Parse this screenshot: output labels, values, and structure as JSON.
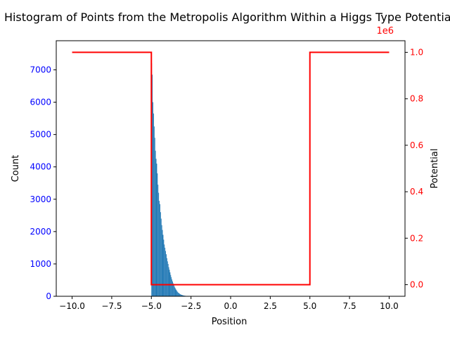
{
  "chart_data": {
    "type": "bar",
    "title": "Histogram of Points from the Metropolis Algorithm Within a Higgs Type Potential",
    "xlabel": "Position",
    "ylabel_left": "Count",
    "ylabel_right": "Potential",
    "right_axis_offset_label": "1e6",
    "xlim": [
      -11,
      11
    ],
    "ylim_left": [
      0,
      7900
    ],
    "ylim_right": [
      -0.05,
      1.05
    ],
    "grid": false,
    "colors": {
      "bars": "#1f77b4",
      "potential_line": "#ff0000",
      "left_tick_labels": "#0000ff",
      "right_tick_labels": "#ff0000",
      "axis": "#000000"
    },
    "x_ticks": [
      -10,
      -7.5,
      -5,
      -2.5,
      0,
      2.5,
      5,
      7.5,
      10
    ],
    "x_tick_labels": [
      "−10.0",
      "−7.5",
      "−5.0",
      "−2.5",
      "0.0",
      "2.5",
      "5.0",
      "7.5",
      "10.0"
    ],
    "left_ticks": [
      0,
      1000,
      2000,
      3000,
      4000,
      5000,
      6000,
      7000
    ],
    "left_tick_labels": [
      "0",
      "1000",
      "2000",
      "3000",
      "4000",
      "5000",
      "6000",
      "7000"
    ],
    "right_ticks": [
      0,
      0.2,
      0.4,
      0.6,
      0.8,
      1.0
    ],
    "right_tick_labels": [
      "0.0",
      "0.2",
      "0.4",
      "0.6",
      "0.8",
      "1.0"
    ],
    "histogram": {
      "bin_width": 0.04,
      "bin_starts": [
        -5.0,
        -4.96,
        -4.92,
        -4.88,
        -4.84,
        -4.8,
        -4.76,
        -4.72,
        -4.68,
        -4.64,
        -4.6,
        -4.56,
        -4.52,
        -4.48,
        -4.44,
        -4.4,
        -4.36,
        -4.32,
        -4.28,
        -4.24,
        -4.2,
        -4.16,
        -4.12,
        -4.08,
        -4.04,
        -4.0,
        -3.96,
        -3.92,
        -3.88,
        -3.84,
        -3.8,
        -3.76,
        -3.72,
        -3.68,
        -3.64,
        -3.6,
        -3.56,
        -3.52,
        -3.48,
        -3.44,
        -3.4,
        -3.36,
        -3.32,
        -3.28,
        -3.24,
        -3.2,
        -3.16,
        -3.12,
        -3.08,
        -3.04,
        -3.0,
        -2.96,
        -2.92,
        -2.88,
        -2.84,
        -2.8,
        -2.76,
        -2.72,
        -2.68,
        -2.64,
        -2.6,
        -2.56,
        -2.52
      ],
      "counts": [
        7200,
        6850,
        6000,
        5650,
        5250,
        4900,
        4500,
        4250,
        4100,
        3800,
        3450,
        3200,
        2950,
        2850,
        2600,
        2400,
        2200,
        2050,
        1900,
        1750,
        1600,
        1500,
        1400,
        1300,
        1180,
        1080,
        1000,
        900,
        820,
        740,
        660,
        590,
        520,
        460,
        400,
        350,
        300,
        260,
        220,
        190,
        160,
        135,
        110,
        95,
        80,
        65,
        55,
        45,
        38,
        32,
        26,
        22,
        18,
        15,
        12,
        10,
        8,
        6,
        5,
        4,
        3,
        2,
        1
      ]
    },
    "potential_series": {
      "name": "Potential",
      "x": [
        -10,
        -5,
        -5,
        5,
        5,
        10
      ],
      "y": [
        1.0,
        1.0,
        0.0,
        0.0,
        1.0,
        1.0
      ]
    }
  }
}
